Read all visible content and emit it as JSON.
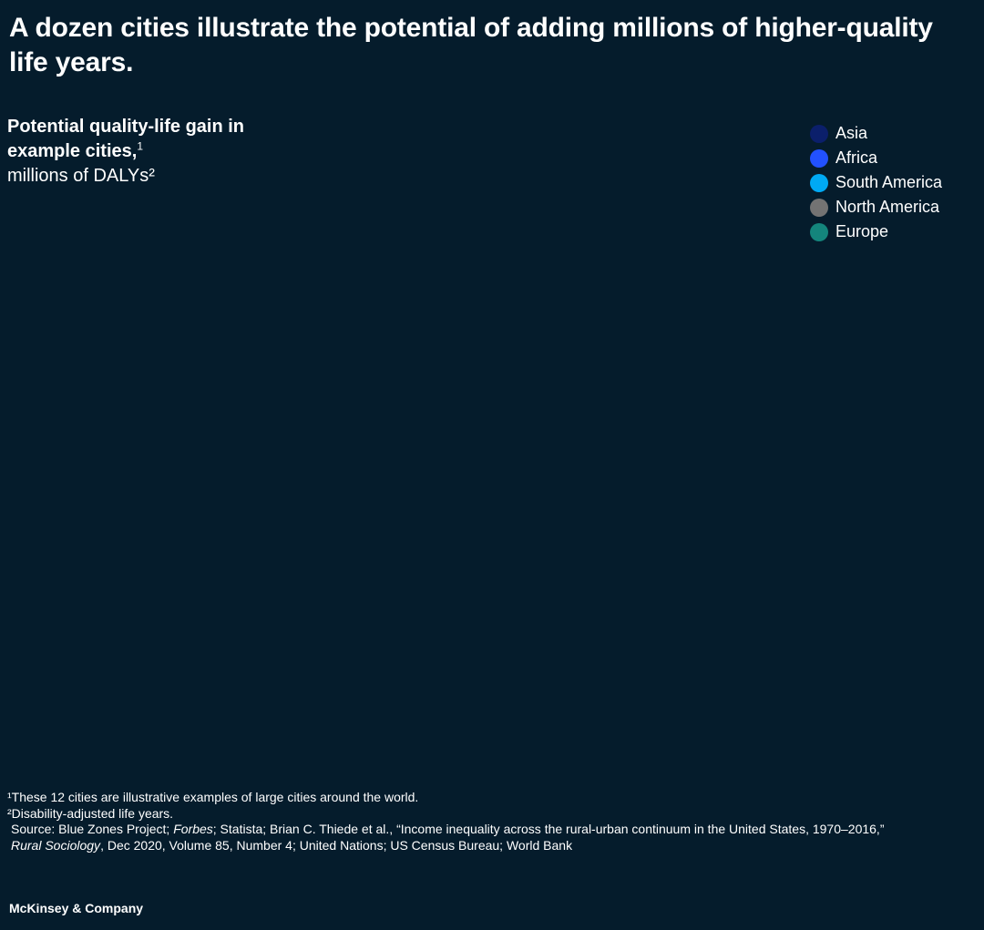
{
  "headline": "A dozen cities illustrate the potential of adding millions of higher-quality life years.",
  "chart_data": {
    "type": "bar",
    "title": "Potential quality-life gain in example cities,",
    "title_sup": "1",
    "subtitle": "millions of DALYs²",
    "legend_placement": "top-right",
    "legend": [
      {
        "label": "Asia",
        "color": "#0b1f6b"
      },
      {
        "label": "Africa",
        "color": "#2251ff"
      },
      {
        "label": "South America",
        "color": "#00a9f4"
      },
      {
        "label": "North America",
        "color": "#737373"
      },
      {
        "label": "Europe",
        "color": "#14857c"
      }
    ],
    "categories": [],
    "series": []
  },
  "footnotes": {
    "note1": "¹These 12 cities are illustrative examples of large cities around the world.",
    "note2": "²Disability-adjusted life years.",
    "source_prefix": "Source: Blue Zones Project; ",
    "source_forbes": "Forbes",
    "source_mid": "; Statista; Brian C. Thiede et al., “Income inequality across the rural-urban continuum in the United States, 1970–2016,”",
    "source_journal": "Rural Sociology",
    "source_end": ", Dec 2020, Volume 85, Number 4; United Nations; US Census Bureau; World Bank"
  },
  "brand": "McKinsey & Company"
}
